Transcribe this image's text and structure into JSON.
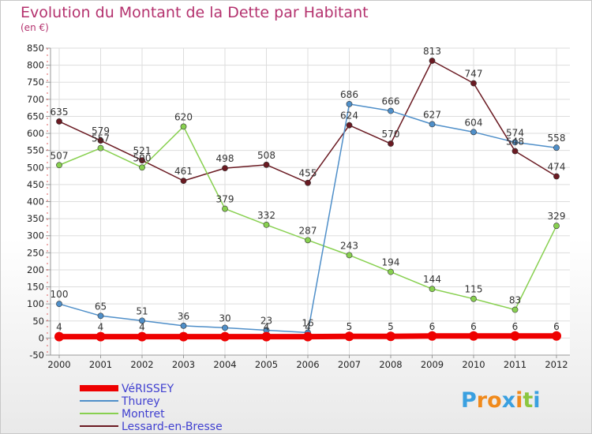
{
  "chart_data": {
    "type": "line",
    "title": "Evolution du Montant de la Dette par Habitant",
    "subtitle": "(en €)",
    "xlabel": "",
    "ylabel": "",
    "ylim": [
      -50,
      850
    ],
    "ytick_step": 50,
    "grid": true,
    "categories": [
      "2000",
      "2001",
      "2002",
      "2003",
      "2004",
      "2005",
      "2006",
      "2007",
      "2008",
      "2009",
      "2010",
      "2011",
      "2012"
    ],
    "series": [
      {
        "name": "VéRISSEY",
        "color": "#ee0000",
        "values": [
          4,
          4,
          4,
          4,
          4,
          4,
          4,
          5,
          5,
          6,
          6,
          6,
          6
        ],
        "labels": [
          "4",
          "4",
          "4",
          "",
          "",
          "4",
          "4",
          "5",
          "5",
          "6",
          "6",
          "6",
          "6"
        ]
      },
      {
        "name": "Thurey",
        "color": "#4f8fc9",
        "values": [
          100,
          65,
          51,
          36,
          30,
          23,
          16,
          686,
          666,
          627,
          604,
          574,
          558
        ],
        "labels": [
          "100",
          "65",
          "51",
          "36",
          "30",
          "23",
          "16",
          "686",
          "666",
          "627",
          "604",
          "574",
          "558"
        ]
      },
      {
        "name": "Montret",
        "color": "#88d050",
        "values": [
          507,
          557,
          500,
          620,
          379,
          332,
          287,
          243,
          194,
          144,
          115,
          83,
          329
        ],
        "labels": [
          "507",
          "557",
          "500",
          "620",
          "379",
          "332",
          "287",
          "243",
          "194",
          "144",
          "115",
          "83",
          "329"
        ]
      },
      {
        "name": "Lessard-en-Bresse",
        "color": "#6a1a22",
        "values": [
          635,
          579,
          521,
          461,
          498,
          508,
          455,
          624,
          570,
          813,
          747,
          548,
          474
        ],
        "labels": [
          "635",
          "579",
          "521",
          "461",
          "498",
          "508",
          "455",
          "624",
          "570",
          "813",
          "747",
          "548",
          "474"
        ]
      }
    ],
    "legend_position": "bottom-left"
  },
  "logo": {
    "text": "Proxiti"
  }
}
